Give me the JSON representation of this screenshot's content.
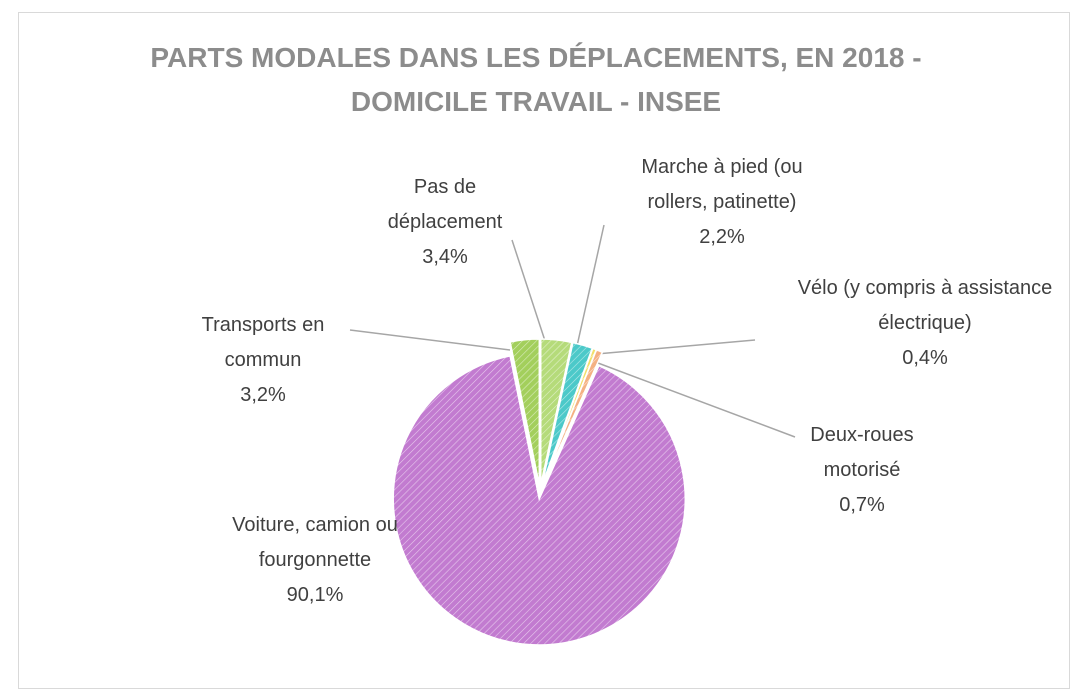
{
  "chart_data": {
    "type": "pie",
    "title": "PARTS MODALES DANS LES DÉPLACEMENTS, EN 2018 - DOMICILE TRAVAIL - INSEE",
    "categories": [
      "Pas de déplacement",
      "Marche à pied (ou rollers, patinette)",
      "Vélo (y compris à assistance électrique)",
      "Deux-roues motorisé",
      "Voiture, camion ou fourgonnette",
      "Transports en commun"
    ],
    "values": [
      3.4,
      2.2,
      0.4,
      0.7,
      90.1,
      3.2
    ],
    "value_labels": [
      "3,4%",
      "2,2%",
      "0,4%",
      "0,7%",
      "90,1%",
      "3,2%"
    ],
    "colors": [
      "#b5db7a",
      "#4cc9c9",
      "#f2e06a",
      "#f4b183",
      "#c27bd0",
      "#a3cf5c"
    ]
  }
}
